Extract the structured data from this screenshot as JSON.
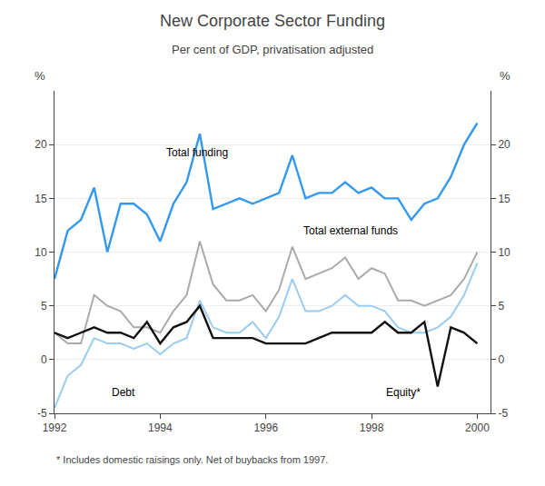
{
  "chart_data": {
    "type": "line",
    "title": "New Corporate Sector Funding",
    "subtitle": "Per cent of GDP, privatisation adjusted",
    "footnote": "* Includes domestic raisings only. Net of buybacks from 1997.",
    "ylabel": "%",
    "y2label": "%",
    "x": [
      1992.0,
      1992.25,
      1992.5,
      1992.75,
      1993.0,
      1993.25,
      1993.5,
      1993.75,
      1994.0,
      1994.25,
      1994.5,
      1994.75,
      1995.0,
      1995.25,
      1995.5,
      1995.75,
      1996.0,
      1996.25,
      1996.5,
      1996.75,
      1997.0,
      1997.25,
      1997.5,
      1997.75,
      1998.0,
      1998.25,
      1998.5,
      1998.75,
      1999.0,
      1999.25,
      1999.5,
      1999.75,
      2000.0
    ],
    "series": [
      {
        "name": "Total funding",
        "color": "#3399ee",
        "values": [
          7.5,
          12.0,
          13.0,
          16.0,
          10.0,
          14.5,
          14.5,
          13.5,
          11.0,
          14.5,
          16.5,
          21.0,
          14.0,
          14.5,
          15.0,
          14.5,
          15.0,
          15.5,
          19.0,
          15.0,
          15.5,
          15.5,
          16.5,
          15.5,
          16.0,
          15.0,
          15.0,
          13.0,
          14.5,
          15.0,
          17.0,
          20.0,
          22.0
        ]
      },
      {
        "name": "Total external funds",
        "color": "#aaaaaa",
        "values": [
          2.5,
          1.5,
          1.5,
          6.0,
          5.0,
          4.5,
          3.0,
          3.0,
          2.5,
          4.5,
          6.0,
          11.0,
          7.0,
          5.5,
          5.5,
          6.0,
          4.5,
          6.5,
          10.5,
          7.5,
          8.0,
          8.5,
          9.5,
          7.5,
          8.5,
          8.0,
          5.5,
          5.5,
          5.0,
          5.5,
          6.0,
          7.5,
          10.0
        ]
      },
      {
        "name": "Debt",
        "color": "#99ccee",
        "values": [
          -4.5,
          -1.5,
          -0.5,
          2.0,
          1.5,
          1.5,
          1.0,
          1.5,
          0.5,
          1.5,
          2.0,
          5.5,
          3.0,
          2.5,
          2.5,
          3.5,
          2.0,
          4.0,
          7.5,
          4.5,
          4.5,
          5.0,
          6.0,
          5.0,
          5.0,
          4.5,
          3.0,
          2.5,
          2.5,
          3.0,
          4.0,
          6.0,
          9.0
        ]
      },
      {
        "name": "Equity*",
        "color": "#111111",
        "values": [
          2.5,
          2.0,
          2.5,
          3.0,
          2.5,
          2.5,
          2.0,
          3.5,
          1.5,
          3.0,
          3.5,
          5.0,
          2.0,
          2.0,
          2.0,
          2.0,
          1.5,
          1.5,
          1.5,
          1.5,
          2.0,
          2.5,
          2.5,
          2.5,
          2.5,
          3.5,
          2.5,
          2.5,
          3.5,
          -2.5,
          3.0,
          2.5,
          1.5
        ]
      }
    ],
    "xlim": [
      1992.0,
      2000.25
    ],
    "xticks": [
      1992,
      1994,
      1996,
      1998,
      2000
    ],
    "ylim": [
      -5,
      25
    ],
    "yticks": [
      -5,
      0,
      5,
      10,
      15,
      20
    ],
    "y2lim": [
      -5,
      25
    ],
    "y2ticks": [
      -5,
      0,
      5,
      10,
      15,
      20
    ],
    "grid": true
  }
}
